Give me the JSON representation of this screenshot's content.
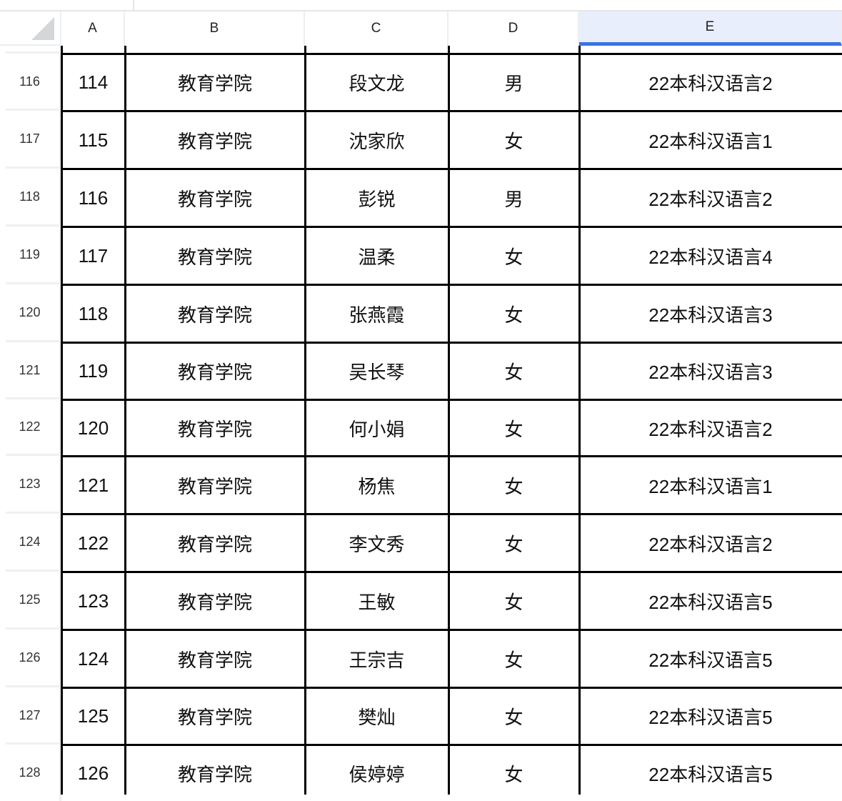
{
  "columns": [
    {
      "letter": "A"
    },
    {
      "letter": "B"
    },
    {
      "letter": "C"
    },
    {
      "letter": "D"
    },
    {
      "letter": "E",
      "selected": true
    }
  ],
  "accent_color": "#3b73e0",
  "rows": [
    {
      "row": "116",
      "cells": [
        "114",
        "教育学院",
        "段文龙",
        "男",
        "22本科汉语言2"
      ]
    },
    {
      "row": "117",
      "cells": [
        "115",
        "教育学院",
        "沈家欣",
        "女",
        "22本科汉语言1"
      ]
    },
    {
      "row": "118",
      "cells": [
        "116",
        "教育学院",
        "彭锐",
        "男",
        "22本科汉语言2"
      ]
    },
    {
      "row": "119",
      "cells": [
        "117",
        "教育学院",
        "温柔",
        "女",
        "22本科汉语言4"
      ]
    },
    {
      "row": "120",
      "cells": [
        "118",
        "教育学院",
        "张燕霞",
        "女",
        "22本科汉语言3"
      ]
    },
    {
      "row": "121",
      "cells": [
        "119",
        "教育学院",
        "吴长琴",
        "女",
        "22本科汉语言3"
      ]
    },
    {
      "row": "122",
      "cells": [
        "120",
        "教育学院",
        "何小娟",
        "女",
        "22本科汉语言2"
      ]
    },
    {
      "row": "123",
      "cells": [
        "121",
        "教育学院",
        "杨焦",
        "女",
        "22本科汉语言1"
      ]
    },
    {
      "row": "124",
      "cells": [
        "122",
        "教育学院",
        "李文秀",
        "女",
        "22本科汉语言2"
      ]
    },
    {
      "row": "125",
      "cells": [
        "123",
        "教育学院",
        "王敏",
        "女",
        "22本科汉语言5"
      ]
    },
    {
      "row": "126",
      "cells": [
        "124",
        "教育学院",
        "王宗吉",
        "女",
        "22本科汉语言5"
      ]
    },
    {
      "row": "127",
      "cells": [
        "125",
        "教育学院",
        "樊灿",
        "女",
        "22本科汉语言5"
      ]
    },
    {
      "row": "128",
      "cells": [
        "126",
        "教育学院",
        "侯婷婷",
        "女",
        "22本科汉语言5"
      ]
    }
  ]
}
